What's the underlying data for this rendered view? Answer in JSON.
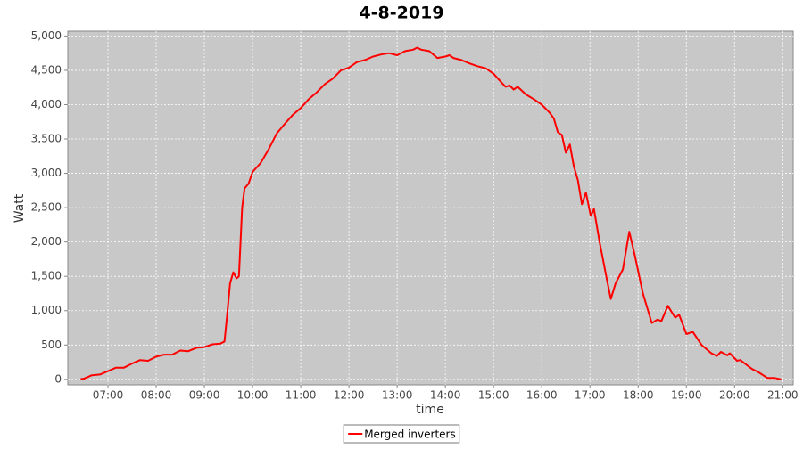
{
  "chart_data": {
    "type": "line",
    "title": "4-8-2019",
    "x_label": "time",
    "y_label": "Watt",
    "x": [
      "06:26",
      "06:30",
      "06:40",
      "06:50",
      "07:00",
      "07:10",
      "07:20",
      "07:30",
      "07:40",
      "07:50",
      "08:00",
      "08:10",
      "08:20",
      "08:30",
      "08:40",
      "08:50",
      "09:00",
      "09:10",
      "09:20",
      "09:25",
      "09:28",
      "09:32",
      "09:36",
      "09:40",
      "09:43",
      "09:47",
      "09:50",
      "09:55",
      "10:00",
      "10:10",
      "10:20",
      "10:30",
      "10:40",
      "10:50",
      "11:00",
      "11:10",
      "11:20",
      "11:30",
      "11:40",
      "11:50",
      "12:00",
      "12:10",
      "12:20",
      "12:30",
      "12:40",
      "12:50",
      "13:00",
      "13:10",
      "13:20",
      "13:25",
      "13:30",
      "13:40",
      "13:50",
      "14:00",
      "14:05",
      "14:10",
      "14:20",
      "14:30",
      "14:40",
      "14:50",
      "15:00",
      "15:10",
      "15:15",
      "15:20",
      "15:25",
      "15:30",
      "15:40",
      "15:50",
      "16:00",
      "16:10",
      "16:15",
      "16:20",
      "16:25",
      "16:30",
      "16:35",
      "16:40",
      "16:45",
      "16:50",
      "16:55",
      "17:01",
      "17:05",
      "17:12",
      "17:22",
      "17:26",
      "17:32",
      "17:41",
      "17:49",
      "17:56",
      "18:06",
      "18:17",
      "18:24",
      "18:29",
      "18:37",
      "18:46",
      "18:51",
      "19:00",
      "19:08",
      "19:19",
      "19:31",
      "19:38",
      "19:43",
      "19:51",
      "19:54",
      "20:03",
      "20:07",
      "20:22",
      "20:29",
      "20:41",
      "20:50",
      "20:58"
    ],
    "series": [
      {
        "name": "Merged inverters",
        "color": "#ff0000",
        "values": [
          5,
          10,
          60,
          70,
          120,
          170,
          170,
          230,
          280,
          270,
          330,
          360,
          360,
          420,
          410,
          460,
          470,
          510,
          520,
          550,
          900,
          1400,
          1560,
          1470,
          1500,
          2500,
          2780,
          2850,
          3020,
          3150,
          3350,
          3580,
          3720,
          3850,
          3950,
          4080,
          4180,
          4300,
          4380,
          4500,
          4540,
          4620,
          4650,
          4700,
          4730,
          4750,
          4720,
          4780,
          4800,
          4830,
          4800,
          4780,
          4680,
          4700,
          4720,
          4680,
          4650,
          4600,
          4560,
          4530,
          4450,
          4320,
          4260,
          4280,
          4220,
          4260,
          4150,
          4080,
          4000,
          3880,
          3800,
          3600,
          3560,
          3300,
          3420,
          3100,
          2900,
          2550,
          2720,
          2380,
          2480,
          2000,
          1400,
          1170,
          1400,
          1600,
          2150,
          1800,
          1250,
          820,
          870,
          850,
          1070,
          900,
          940,
          660,
          690,
          500,
          380,
          340,
          400,
          350,
          380,
          270,
          280,
          150,
          110,
          20,
          20,
          0
        ]
      }
    ],
    "xlim": [
      "06:10",
      "21:13"
    ],
    "xticks": [
      "07:00",
      "08:00",
      "09:00",
      "10:00",
      "11:00",
      "12:00",
      "13:00",
      "14:00",
      "15:00",
      "16:00",
      "17:00",
      "18:00",
      "19:00",
      "20:00",
      "21:00"
    ],
    "ylim": [
      -80,
      5070
    ],
    "yticks": [
      0,
      500,
      {
        "value": 1000,
        "label": "1,000"
      },
      {
        "value": 1500,
        "label": "1,500"
      },
      {
        "value": 2000,
        "label": "2,000"
      },
      {
        "value": 2500,
        "label": "2,500"
      },
      {
        "value": 3000,
        "label": "3,000"
      },
      {
        "value": 3500,
        "label": "3,500"
      },
      {
        "value": 4000,
        "label": "4,000"
      },
      {
        "value": 4500,
        "label": "4,500"
      },
      {
        "value": 5000,
        "label": "5,000"
      }
    ],
    "grid": true,
    "legend": "bottom"
  }
}
